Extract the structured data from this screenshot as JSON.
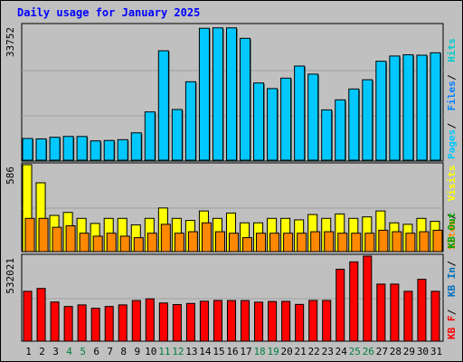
{
  "title": "Daily usage for January 2025",
  "colors": {
    "background": "#c0c0c0",
    "plot_bg": "#c0c0c0",
    "grid": "#a0a0a0",
    "hits": "#00cccc",
    "files": "#0080ff",
    "pages": "#00c8ff",
    "visits": "#ffff00",
    "sites": "#ff8800",
    "kbf": "#ff0000",
    "kbin": "#0070c0",
    "kbout": "#00a000",
    "title": "#0000ff",
    "weekend_label": "#007f3f",
    "weekday_label": "#000000"
  },
  "chart_data": [
    {
      "type": "bar",
      "panel": "hits-files-pages",
      "categories": [
        "1",
        "2",
        "3",
        "4",
        "5",
        "6",
        "7",
        "8",
        "9",
        "10",
        "11",
        "12",
        "13",
        "14",
        "15",
        "16",
        "17",
        "18",
        "19",
        "20",
        "21",
        "22",
        "23",
        "24",
        "25",
        "26",
        "27",
        "28",
        "29",
        "30",
        "31"
      ],
      "weekend_days": [
        "4",
        "5",
        "11",
        "12",
        "18",
        "19",
        "25",
        "26"
      ],
      "ymax_label": "33752",
      "ylim": [
        0,
        33752
      ],
      "grid": true,
      "series": [
        {
          "name": "Hits",
          "color": "#00cccc",
          "values": [
            5400,
            5300,
            5700,
            5900,
            5900,
            4800,
            4900,
            5100,
            6800,
            12000,
            27200,
            12600,
            19500,
            32800,
            32900,
            32900,
            30300,
            19200,
            17800,
            20400,
            23400,
            21400,
            12500,
            15000,
            17700,
            20000,
            24600,
            25900,
            26200,
            26100,
            26700
          ]
        },
        {
          "name": "Files",
          "color": "#0080ff",
          "values": [
            5400,
            5300,
            5700,
            5900,
            5900,
            4800,
            4900,
            5100,
            6800,
            12000,
            27200,
            12600,
            19500,
            32800,
            32900,
            32900,
            30300,
            19200,
            17800,
            20400,
            23400,
            21400,
            12500,
            15000,
            17700,
            20000,
            24600,
            25900,
            26200,
            26100,
            26700
          ]
        },
        {
          "name": "Pages",
          "color": "#00c8ff",
          "values": [
            5400,
            5300,
            5700,
            5900,
            5900,
            4800,
            4900,
            5100,
            6800,
            12000,
            27200,
            12600,
            19500,
            32800,
            32900,
            32900,
            30300,
            19200,
            17800,
            20400,
            23400,
            21400,
            12500,
            15000,
            17700,
            20000,
            24600,
            25900,
            26200,
            26100,
            26700
          ]
        }
      ],
      "legend": [
        "Pages",
        "/",
        "Files",
        "/",
        "Hits"
      ],
      "legend_placement": "right"
    },
    {
      "type": "bar",
      "panel": "visits-sites",
      "categories": [
        "1",
        "2",
        "3",
        "4",
        "5",
        "6",
        "7",
        "8",
        "9",
        "10",
        "11",
        "12",
        "13",
        "14",
        "15",
        "16",
        "17",
        "18",
        "19",
        "20",
        "21",
        "22",
        "23",
        "24",
        "25",
        "26",
        "27",
        "28",
        "29",
        "30",
        "31"
      ],
      "ymax_label": "586",
      "ylim": [
        0,
        586
      ],
      "grid": true,
      "series": [
        {
          "name": "Visits",
          "color": "#ffff00",
          "values": [
            586,
            464,
            244,
            264,
            224,
            190,
            224,
            224,
            180,
            224,
            294,
            224,
            210,
            274,
            224,
            260,
            194,
            194,
            224,
            224,
            214,
            250,
            224,
            254,
            224,
            234,
            274,
            194,
            184,
            224,
            204
          ]
        },
        {
          "name": "Sites",
          "color": "#ff8800",
          "values": [
            224,
            224,
            164,
            174,
            124,
            104,
            124,
            104,
            94,
            124,
            184,
            124,
            134,
            194,
            134,
            124,
            94,
            124,
            124,
            124,
            124,
            134,
            134,
            124,
            124,
            124,
            144,
            134,
            124,
            134,
            144
          ]
        }
      ],
      "legend": [
        "Sites",
        "/",
        "Visits"
      ],
      "legend_placement": "right"
    },
    {
      "type": "bar",
      "panel": "kbytes",
      "categories": [
        "1",
        "2",
        "3",
        "4",
        "5",
        "6",
        "7",
        "8",
        "9",
        "10",
        "11",
        "12",
        "13",
        "14",
        "15",
        "16",
        "17",
        "18",
        "19",
        "20",
        "21",
        "22",
        "23",
        "24",
        "25",
        "26",
        "27",
        "28",
        "29",
        "30",
        "31"
      ],
      "ymax_label": "532021",
      "ylim": [
        0,
        532021
      ],
      "grid": true,
      "series": [
        {
          "name": "KB F",
          "color": "#ff0000",
          "values": [
            312000,
            330000,
            245000,
            217000,
            227000,
            206000,
            217000,
            227000,
            254000,
            265000,
            239000,
            229000,
            236000,
            250000,
            255000,
            254000,
            254000,
            244000,
            248000,
            249000,
            230000,
            255000,
            255000,
            450000,
            496000,
            532000,
            357000,
            357000,
            312000,
            387000,
            312000
          ]
        }
      ],
      "legend": [
        "KB F",
        "/",
        "KB In",
        "/",
        "KB Out"
      ],
      "legend_placement": "right"
    }
  ]
}
